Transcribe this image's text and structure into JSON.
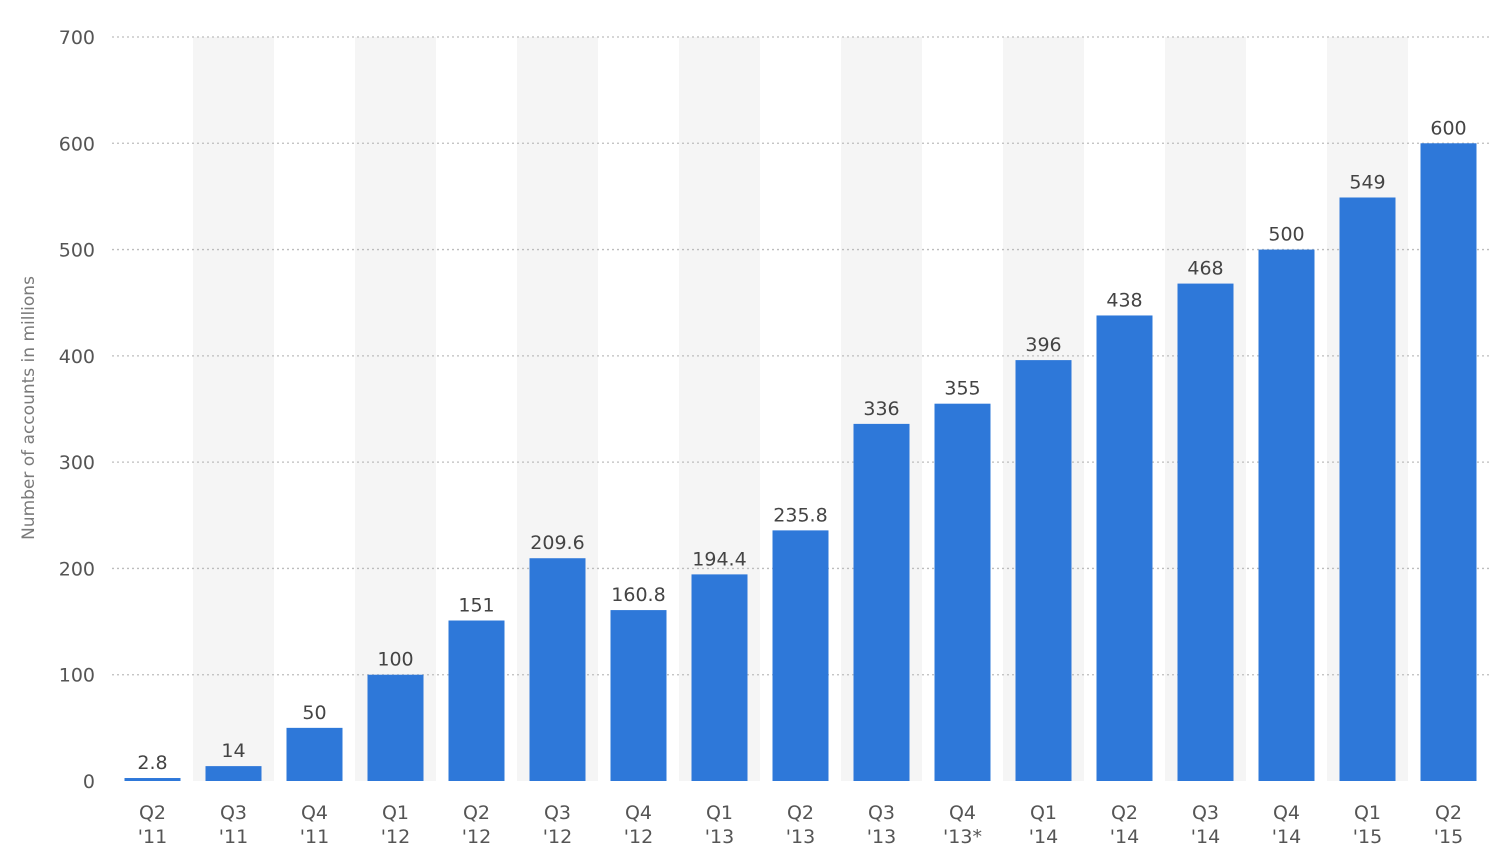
{
  "chart_data": {
    "type": "bar",
    "title": "",
    "xlabel": "",
    "ylabel": "Number of accounts in millions",
    "ylim": [
      0,
      700
    ],
    "yticks": [
      0,
      100,
      200,
      300,
      400,
      500,
      600,
      700
    ],
    "grid": true,
    "categories": [
      [
        "Q2",
        "'11"
      ],
      [
        "Q3",
        "'11"
      ],
      [
        "Q4",
        "'11"
      ],
      [
        "Q1",
        "'12"
      ],
      [
        "Q2",
        "'12"
      ],
      [
        "Q3",
        "'12"
      ],
      [
        "Q4",
        "'12"
      ],
      [
        "Q1",
        "'13"
      ],
      [
        "Q2",
        "'13"
      ],
      [
        "Q3",
        "'13"
      ],
      [
        "Q4",
        "'13*"
      ],
      [
        "Q1",
        "'14"
      ],
      [
        "Q2",
        "'14"
      ],
      [
        "Q3",
        "'14"
      ],
      [
        "Q4",
        "'14"
      ],
      [
        "Q1",
        "'15"
      ],
      [
        "Q2",
        "'15"
      ]
    ],
    "values": [
      2.8,
      14,
      50,
      100,
      151,
      209.6,
      160.8,
      194.4,
      235.8,
      336,
      355,
      396,
      438,
      468,
      500,
      549,
      600
    ],
    "value_labels": [
      "2.8",
      "14",
      "50",
      "100",
      "151",
      "209.6",
      "160.8",
      "194.4",
      "235.8",
      "336",
      "355",
      "396",
      "438",
      "468",
      "500",
      "549",
      "600"
    ],
    "colors": {
      "bar": "#2e78d9",
      "alt_band": "#f5f5f5",
      "grid": "#bdbdbd"
    }
  }
}
